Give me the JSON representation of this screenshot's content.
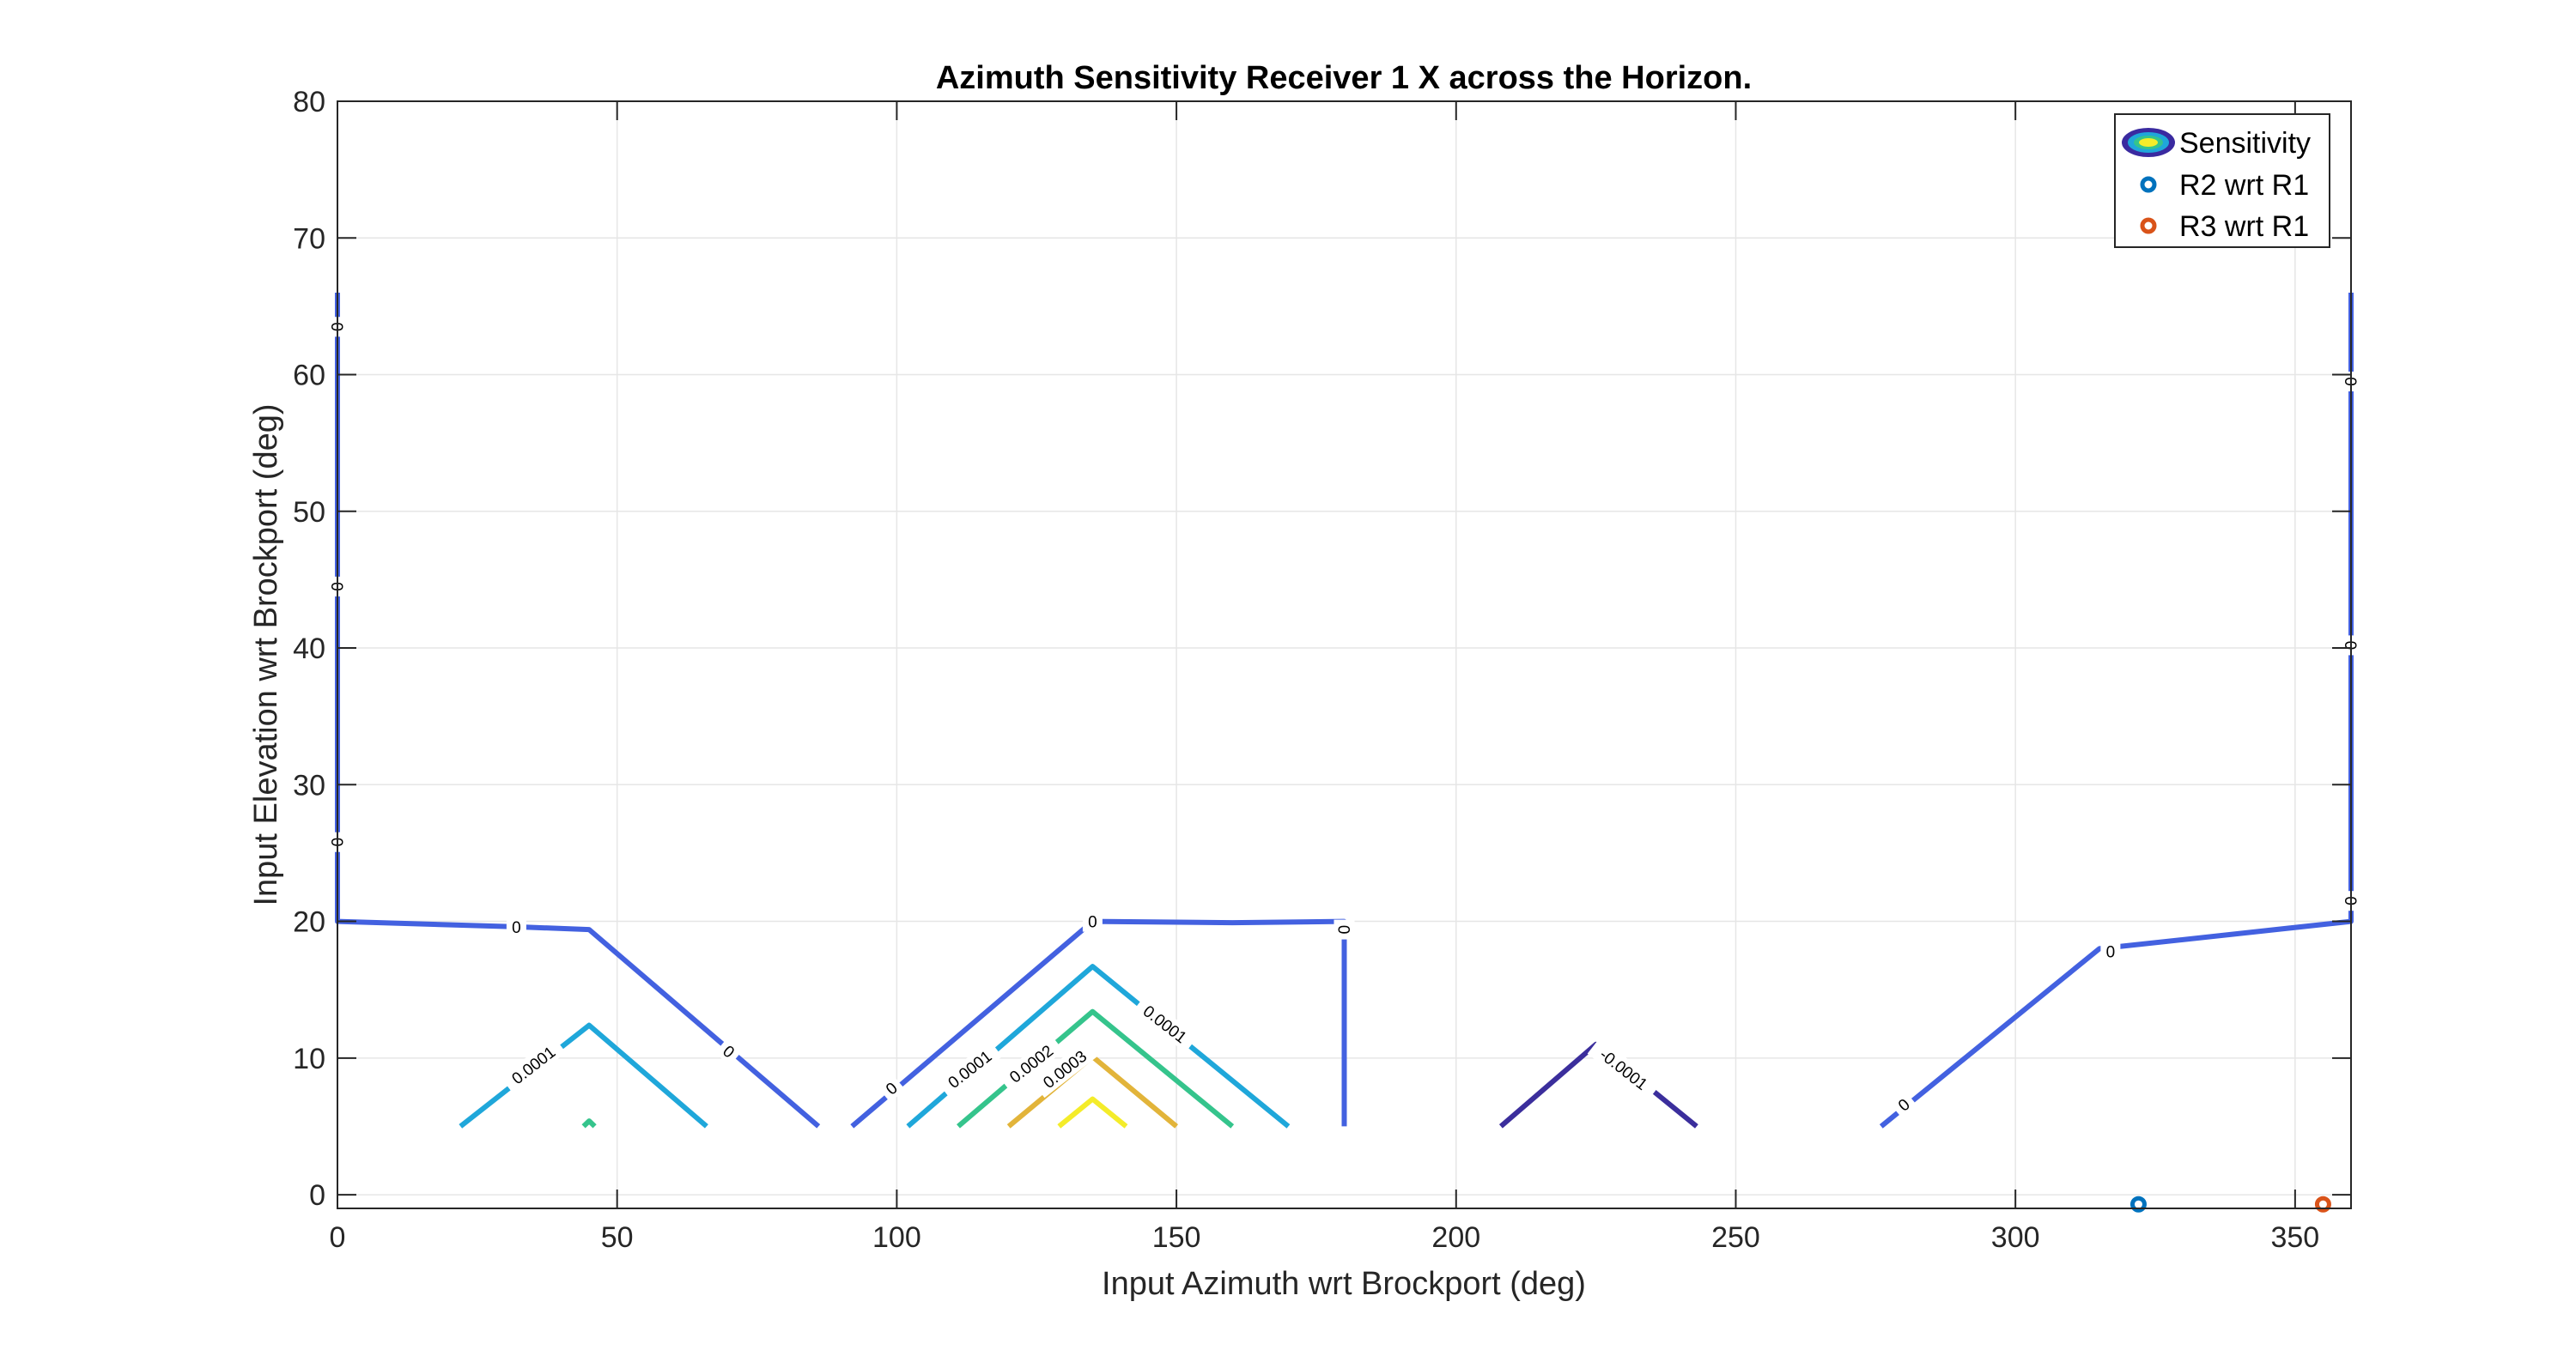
{
  "chart_data": {
    "type": "contour",
    "title": "Azimuth Sensitivity Receiver 1 X across the Horizon.",
    "xlabel": "Input Azimuth wrt Brockport (deg)",
    "ylabel": "Input Elevation wrt Brockport (deg)",
    "xlim": [
      0,
      360
    ],
    "ylim": [
      -1,
      80
    ],
    "xticks": [
      0,
      50,
      100,
      150,
      200,
      250,
      300,
      350
    ],
    "yticks": [
      0,
      10,
      20,
      30,
      40,
      50,
      60,
      70,
      80
    ],
    "grid": true,
    "legend": {
      "placement": "top-right",
      "entries": [
        {
          "label": "Sensitivity",
          "kind": "contour"
        },
        {
          "label": "R2 wrt R1",
          "kind": "marker",
          "color": "#0072BD"
        },
        {
          "label": "R3 wrt R1",
          "kind": "marker",
          "color": "#D95319"
        }
      ]
    },
    "contours": [
      {
        "level": "0",
        "color": "#4361E0",
        "segments": [
          [
            [
              0,
              66
            ],
            [
              0,
              20
            ],
            [
              32,
              19.6
            ],
            [
              45,
              19.4
            ],
            [
              86,
              5
            ]
          ],
          [
            [
              92,
              5
            ],
            [
              135,
              20
            ],
            [
              160,
              19.9
            ],
            [
              180,
              20
            ],
            [
              180,
              5
            ]
          ],
          [
            [
              276,
              5
            ],
            [
              315,
              18
            ],
            [
              360,
              20
            ],
            [
              360,
              66
            ]
          ]
        ]
      },
      {
        "level": "0.0001",
        "color": "#1FA7DA",
        "segments": [
          [
            [
              22,
              5
            ],
            [
              45,
              12.4
            ],
            [
              66,
              5
            ]
          ],
          [
            [
              102,
              5
            ],
            [
              135,
              16.7
            ],
            [
              170,
              5
            ]
          ]
        ]
      },
      {
        "level": "0.0002",
        "color": "#35C48C",
        "segments": [
          [
            [
              44,
              5
            ],
            [
              45,
              5.4
            ],
            [
              46,
              5
            ]
          ],
          [
            [
              111,
              5
            ],
            [
              135,
              13.4
            ],
            [
              160,
              5
            ]
          ]
        ]
      },
      {
        "level": "0.0003",
        "color": "#E2B43A",
        "segments": [
          [
            [
              120,
              5
            ],
            [
              135,
              10.1
            ],
            [
              150,
              5
            ]
          ]
        ]
      },
      {
        "level": "",
        "color": "#F4EC2A",
        "segments": [
          [
            [
              129,
              5
            ],
            [
              135,
              7
            ],
            [
              141,
              5
            ]
          ]
        ]
      },
      {
        "level": "-0.0001",
        "color": "#3B2E9C",
        "segments": [
          [
            [
              208,
              5
            ],
            [
              225,
              11
            ],
            [
              243,
              5
            ]
          ]
        ]
      }
    ],
    "contour_labels": [
      {
        "text": "0",
        "x": 0,
        "y": 63.5,
        "angle": 90
      },
      {
        "text": "0",
        "x": 0,
        "y": 44.5,
        "angle": 90
      },
      {
        "text": "0",
        "x": 0,
        "y": 25.8,
        "angle": 90
      },
      {
        "text": "0",
        "x": 32,
        "y": 19.6,
        "angle": 0
      },
      {
        "text": "0",
        "x": 70,
        "y": 10.5,
        "angle": 40
      },
      {
        "text": "0",
        "x": 99,
        "y": 7.8,
        "angle": -40
      },
      {
        "text": "0",
        "x": 135,
        "y": 20,
        "angle": 0
      },
      {
        "text": "0",
        "x": 180,
        "y": 19.4,
        "angle": 90
      },
      {
        "text": "0",
        "x": 280,
        "y": 6.6,
        "angle": -40
      },
      {
        "text": "0",
        "x": 317,
        "y": 17.8,
        "angle": 0
      },
      {
        "text": "0",
        "x": 360,
        "y": 59.5,
        "angle": 90
      },
      {
        "text": "0",
        "x": 360,
        "y": 40.2,
        "angle": 90
      },
      {
        "text": "0",
        "x": 360,
        "y": 21.5,
        "angle": 90
      },
      {
        "text": "0.0001",
        "x": 35,
        "y": 9.5,
        "angle": -38
      },
      {
        "text": "0.0001",
        "x": 113,
        "y": 9.2,
        "angle": -38
      },
      {
        "text": "0.0001",
        "x": 148,
        "y": 12.5,
        "angle": 38
      },
      {
        "text": "0.0002",
        "x": 124,
        "y": 9.6,
        "angle": -38
      },
      {
        "text": "0.0003",
        "x": 130,
        "y": 9.2,
        "angle": -38
      },
      {
        "text": "-0.0001",
        "x": 230,
        "y": 9.2,
        "angle": 38
      }
    ],
    "markers": [
      {
        "series": "R2 wrt R1",
        "x": 322,
        "y": -0.7,
        "color": "#0072BD"
      },
      {
        "series": "R3 wrt R1",
        "x": 355,
        "y": -0.7,
        "color": "#D95319"
      }
    ]
  }
}
